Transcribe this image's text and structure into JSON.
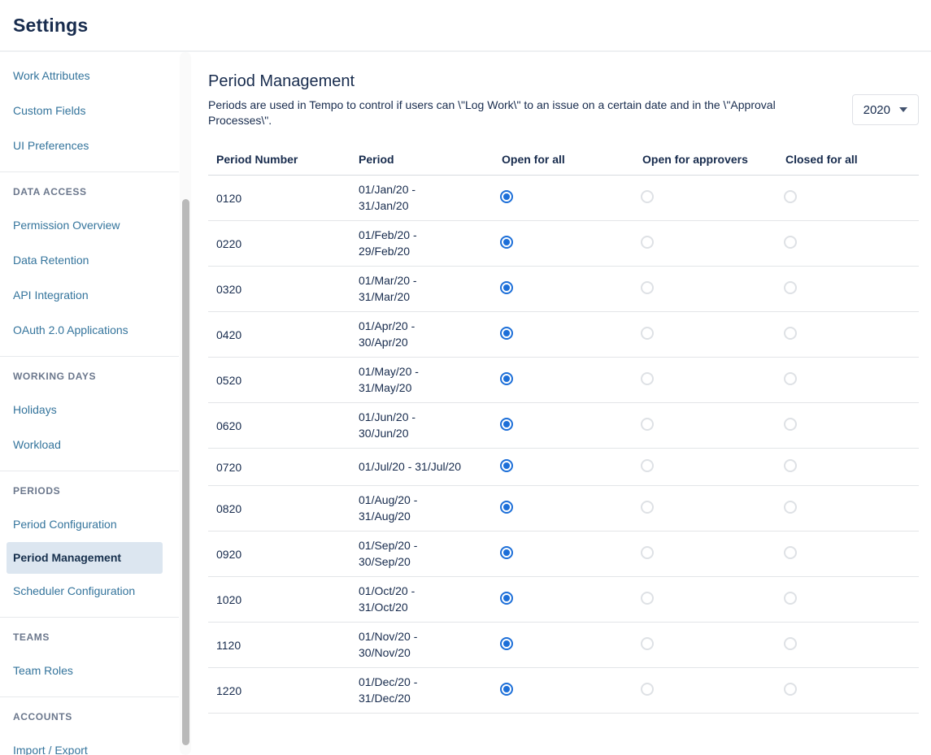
{
  "page_title": "Settings",
  "colors": {
    "link": "#34749c",
    "selected_item_bg": "#dce6f0",
    "radio_checked": "#1d6fd8",
    "heading_text": "#172b4d"
  },
  "sidebar": {
    "groups": [
      {
        "header": null,
        "items": [
          {
            "label": "Work Attributes"
          },
          {
            "label": "Custom Fields"
          },
          {
            "label": "UI Preferences"
          }
        ]
      },
      {
        "header": "DATA ACCESS",
        "items": [
          {
            "label": "Permission Overview"
          },
          {
            "label": "Data Retention"
          },
          {
            "label": "API Integration"
          },
          {
            "label": "OAuth 2.0 Applications"
          }
        ]
      },
      {
        "header": "WORKING DAYS",
        "items": [
          {
            "label": "Holidays"
          },
          {
            "label": "Workload"
          }
        ]
      },
      {
        "header": "PERIODS",
        "items": [
          {
            "label": "Period Configuration"
          },
          {
            "label": "Period Management",
            "selected": true
          },
          {
            "label": "Scheduler Configuration"
          }
        ]
      },
      {
        "header": "TEAMS",
        "items": [
          {
            "label": "Team Roles"
          }
        ]
      },
      {
        "header": "ACCOUNTS",
        "items": [
          {
            "label": "Import / Export"
          }
        ]
      }
    ]
  },
  "main": {
    "title": "Period Management",
    "description": "Periods are used in Tempo to control if users can \\\"Log Work\\\" to an issue on a certain date and in the \\\"Approval Processes\\\".",
    "year_selector": {
      "value": "2020",
      "icon": "chevron-down"
    },
    "table": {
      "columns": [
        "Period Number",
        "Period",
        "Open for all",
        "Open for approvers",
        "Closed for all"
      ],
      "rows": [
        {
          "period_number": "0120",
          "period": "01/Jan/20 -\n31/Jan/20",
          "selected": "open_for_all"
        },
        {
          "period_number": "0220",
          "period": "01/Feb/20 -\n29/Feb/20",
          "selected": "open_for_all"
        },
        {
          "period_number": "0320",
          "period": "01/Mar/20 -\n31/Mar/20",
          "selected": "open_for_all"
        },
        {
          "period_number": "0420",
          "period": "01/Apr/20 -\n30/Apr/20",
          "selected": "open_for_all"
        },
        {
          "period_number": "0520",
          "period": "01/May/20 -\n31/May/20",
          "selected": "open_for_all"
        },
        {
          "period_number": "0620",
          "period": "01/Jun/20 -\n30/Jun/20",
          "selected": "open_for_all"
        },
        {
          "period_number": "0720",
          "period": "01/Jul/20 - 31/Jul/20",
          "selected": "open_for_all"
        },
        {
          "period_number": "0820",
          "period": "01/Aug/20 -\n31/Aug/20",
          "selected": "open_for_all"
        },
        {
          "period_number": "0920",
          "period": "01/Sep/20 -\n30/Sep/20",
          "selected": "open_for_all"
        },
        {
          "period_number": "1020",
          "period": "01/Oct/20 -\n31/Oct/20",
          "selected": "open_for_all"
        },
        {
          "period_number": "1120",
          "period": "01/Nov/20 -\n30/Nov/20",
          "selected": "open_for_all"
        },
        {
          "period_number": "1220",
          "period": "01/Dec/20 -\n31/Dec/20",
          "selected": "open_for_all"
        }
      ]
    }
  }
}
